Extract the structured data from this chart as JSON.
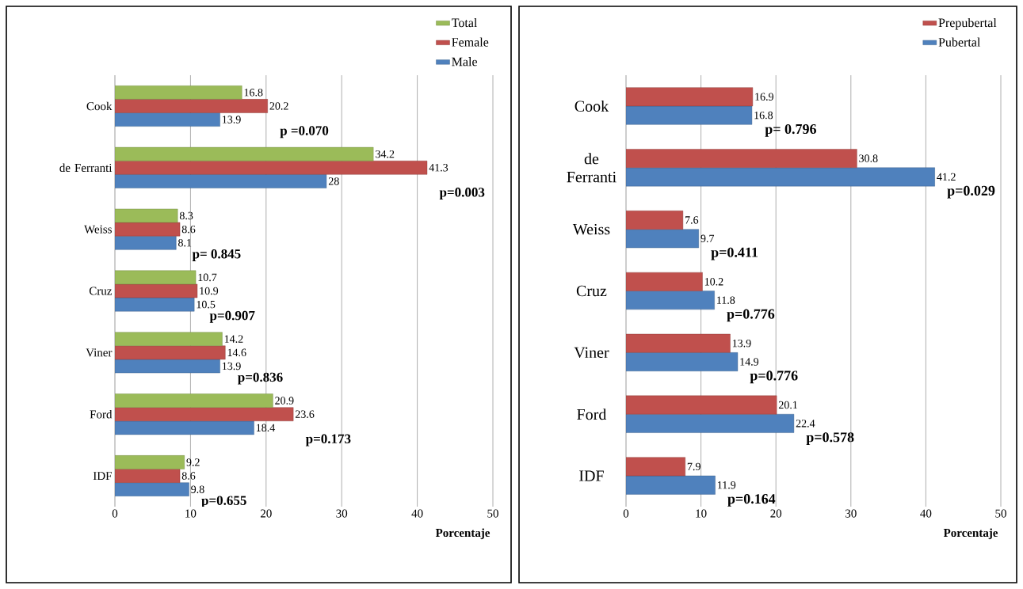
{
  "chart_data": [
    {
      "type": "bar",
      "orientation": "horizontal",
      "categories": [
        "Cook",
        "de Ferranti",
        "Weiss",
        "Cruz",
        "Viner",
        "Ford",
        "IDF"
      ],
      "series": [
        {
          "name": "Male",
          "color": "#4f81bd",
          "values": [
            13.9,
            28,
            8.1,
            10.5,
            13.9,
            18.4,
            9.8
          ]
        },
        {
          "name": "Female",
          "color": "#c0504d",
          "values": [
            20.2,
            41.3,
            8.6,
            10.9,
            14.6,
            23.6,
            8.6
          ]
        },
        {
          "name": "Total",
          "color": "#9bbb59",
          "values": [
            16.8,
            34.2,
            8.3,
            10.7,
            14.2,
            20.9,
            9.2
          ]
        }
      ],
      "xlim": [
        0,
        50
      ],
      "xticks": [
        0,
        10,
        20,
        30,
        40,
        50
      ],
      "xlabel": "Porcentaje",
      "grid": "x",
      "legend": "top right",
      "data_labels": true,
      "annotations": [
        "p =0.070",
        "p=0.003",
        "p= 0.845",
        "p=0.907",
        "p=0.836",
        "p=0.173",
        "p=0.655"
      ]
    },
    {
      "type": "bar",
      "orientation": "horizontal",
      "categories": [
        "Cook",
        "de Ferranti",
        "Weiss",
        "Cruz",
        "Viner",
        "Ford",
        "IDF"
      ],
      "series": [
        {
          "name": "Pubertal",
          "color": "#4f81bd",
          "values": [
            16.8,
            41.2,
            9.7,
            11.8,
            14.9,
            22.4,
            11.9
          ]
        },
        {
          "name": "Prepubertal",
          "color": "#c0504d",
          "values": [
            16.9,
            30.8,
            7.6,
            10.2,
            13.9,
            20.1,
            7.9
          ]
        }
      ],
      "xlim": [
        0,
        50
      ],
      "xticks": [
        0,
        10,
        20,
        30,
        40,
        50
      ],
      "xlabel": "Porcentaje",
      "grid": "x",
      "legend": "top right",
      "data_labels": true,
      "annotations": [
        "p= 0.796",
        "p=0.029",
        "p=0.411",
        "p=0.776",
        "p=0.776",
        "p=0.578",
        "p=0.164"
      ]
    }
  ]
}
